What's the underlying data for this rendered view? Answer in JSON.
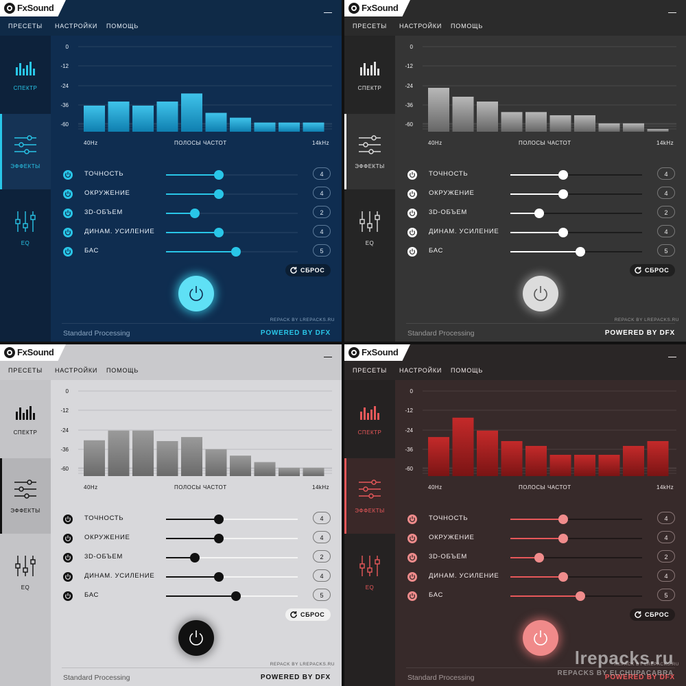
{
  "app": {
    "logo_text": "FxSound",
    "menu": [
      "ПРЕСЕТЫ",
      "НАСТРОЙКИ",
      "ПОМОЩЬ"
    ],
    "sidebar": [
      {
        "label": "СПЕКТР",
        "icon": "spectrum-icon"
      },
      {
        "label": "ЭФФЕКТЫ",
        "icon": "effects-sliders-icon"
      },
      {
        "label": "EQ",
        "icon": "eq-sliders-icon"
      }
    ],
    "spectrum": {
      "y_ticks": [
        "0",
        "-12",
        "-24",
        "-36",
        "-60"
      ],
      "x_start": "40Hz",
      "x_center": "ПОЛОСЫ ЧАСТОТ",
      "x_end": "14kHz"
    },
    "effects": [
      {
        "label": "ТОЧНОСТЬ",
        "value": "4"
      },
      {
        "label": "ОКРУЖЕНИЕ",
        "value": "4"
      },
      {
        "label": "3D-ОБЪЕМ",
        "value": "2"
      },
      {
        "label": "ДИНАМ. УСИЛЕНИЕ",
        "value": "4"
      },
      {
        "label": "БАС",
        "value": "5"
      }
    ],
    "reset_label": "СБРОС",
    "repack_text": "REPACK BY LREPACKS.RU",
    "footer_left": "Standard Processing",
    "footer_right": "POWERED BY DFX"
  },
  "effect_levels": [
    0.4,
    0.4,
    0.22,
    0.4,
    0.53
  ],
  "themes": [
    {
      "name": "blue",
      "colors": {
        "accent": "#29c6e8",
        "background": "#0f2d50"
      },
      "bars": [
        -36.5,
        -34,
        -36.5,
        -34,
        -29,
        -41,
        -44,
        -47,
        -47,
        -47
      ],
      "active_tab": 1
    },
    {
      "name": "gray",
      "colors": {
        "accent": "#ffffff",
        "background": "#353535"
      },
      "bars": [
        -25.5,
        -31,
        -34,
        -40.5,
        -40.5,
        -42.5,
        -42.5,
        -47.5,
        -47.5,
        -51
      ],
      "active_tab": 1
    },
    {
      "name": "light",
      "colors": {
        "accent": "#111111",
        "background": "#d8d8db"
      },
      "bars": [
        -30.5,
        -24.5,
        -24.5,
        -31,
        -28.5,
        -36,
        -40,
        -44,
        -47.5,
        -47.5
      ],
      "active_tab": 1
    },
    {
      "name": "red",
      "colors": {
        "accent": "#e8585a",
        "background": "#372a2a"
      },
      "bars": [
        -28.5,
        -16.5,
        -24.5,
        -31,
        -34,
        -39.5,
        -39.5,
        -39.5,
        -34,
        -31
      ],
      "active_tab": 1
    }
  ],
  "watermark": {
    "site": "lrepacks.ru",
    "subtitle": "REPACKS BY ELCHUPACABRA"
  }
}
